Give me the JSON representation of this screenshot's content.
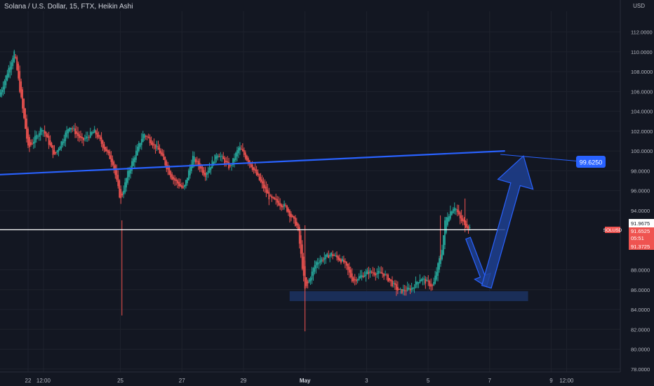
{
  "header": {
    "title": "Solana / U.S. Dollar, 15, FTX, Heikin Ashi",
    "currency": "USD"
  },
  "chart_data": {
    "type": "candlestick",
    "y_ticks": [
      "112.0000",
      "110.0000",
      "108.0000",
      "106.0000",
      "104.0000",
      "102.0000",
      "100.0000",
      "98.0000",
      "96.0000",
      "94.0000",
      "88.0000",
      "86.0000",
      "84.0000",
      "82.0000",
      "80.0000",
      "78.0000"
    ],
    "y_tick_values": [
      112,
      110,
      108,
      106,
      104,
      102,
      100,
      98,
      96,
      94,
      88,
      86,
      84,
      82,
      80,
      78
    ],
    "ylim": [
      77.7,
      114.1
    ],
    "x_labels": [
      "22",
      "12:00",
      "25",
      "27",
      "29",
      "May",
      "3",
      "5",
      "7",
      "9",
      "12:00"
    ],
    "x_label_days": [
      22.0,
      22.5,
      25.0,
      27.0,
      29.0,
      1.0,
      3.0,
      5.0,
      7.0,
      9.0,
      9.5
    ],
    "x_label_bold": [
      false,
      false,
      false,
      false,
      false,
      true,
      false,
      false,
      false,
      false,
      false
    ],
    "price_path": [
      [
        21.1,
        105.5
      ],
      [
        21.6,
        110.0
      ],
      [
        22.05,
        100.2
      ],
      [
        22.5,
        102.4
      ],
      [
        22.9,
        99.5
      ],
      [
        23.4,
        102.6
      ],
      [
        23.8,
        101.0
      ],
      [
        24.2,
        102.0
      ],
      [
        24.8,
        98.8
      ],
      [
        25.05,
        95.0
      ],
      [
        25.3,
        97.9
      ],
      [
        25.8,
        101.8
      ],
      [
        26.3,
        100.0
      ],
      [
        26.7,
        97.4
      ],
      [
        27.1,
        96.1
      ],
      [
        27.4,
        99.4
      ],
      [
        27.8,
        97.6
      ],
      [
        28.2,
        99.8
      ],
      [
        28.6,
        98.3
      ],
      [
        28.9,
        100.4
      ],
      [
        29.3,
        98.5
      ],
      [
        29.9,
        95.2
      ],
      [
        30.4,
        94.4
      ],
      [
        30.8,
        92.3
      ],
      [
        31.05,
        85.9
      ],
      [
        31.4,
        88.8
      ],
      [
        31.9,
        89.6
      ],
      [
        32.3,
        88.8
      ],
      [
        32.6,
        86.9
      ],
      [
        33.1,
        87.8
      ],
      [
        33.6,
        87.6
      ],
      [
        34.1,
        85.8
      ],
      [
        34.5,
        86.1
      ],
      [
        34.8,
        87.2
      ],
      [
        35.2,
        86.3
      ],
      [
        35.5,
        90.2
      ],
      [
        35.6,
        93.1
      ],
      [
        35.9,
        94.5
      ],
      [
        36.1,
        93.0
      ],
      [
        36.4,
        92.2
      ]
    ],
    "lines": [
      {
        "name": "resistance-trendline",
        "points": [
          [
            21.0,
            97.6
          ],
          [
            37.5,
            100.0
          ]
        ],
        "color": "#2962ff"
      },
      {
        "name": "current-price-line",
        "points": [
          [
            21.0,
            92.05
          ],
          [
            37.5,
            92.05
          ]
        ],
        "color": "#ffffff"
      }
    ],
    "zones": [
      {
        "name": "support-zone",
        "x": [
          30.5,
          38.25
        ],
        "y": [
          85.85,
          84.85
        ],
        "color": "#1a2f5c"
      }
    ],
    "arrows": [
      {
        "name": "down-arrow",
        "from": [
          36.3,
          91.2
        ],
        "to": [
          36.9,
          86.3
        ]
      },
      {
        "name": "up-arrow",
        "from": [
          36.9,
          86.3
        ],
        "to": [
          38.1,
          99.5
        ]
      }
    ],
    "callout": {
      "label": "99.6250",
      "target": [
        37.35,
        99.65
      ]
    },
    "price_labels": {
      "upper": "91.9675",
      "symbol": "SOLUSD",
      "current": "91.6525",
      "countdown": "05:51",
      "lower": "91.3725"
    },
    "colors": {
      "up": "#26a69a",
      "down": "#ef5350",
      "background": "#131722",
      "grid": "#1e222d",
      "accent": "#2962ff"
    }
  }
}
